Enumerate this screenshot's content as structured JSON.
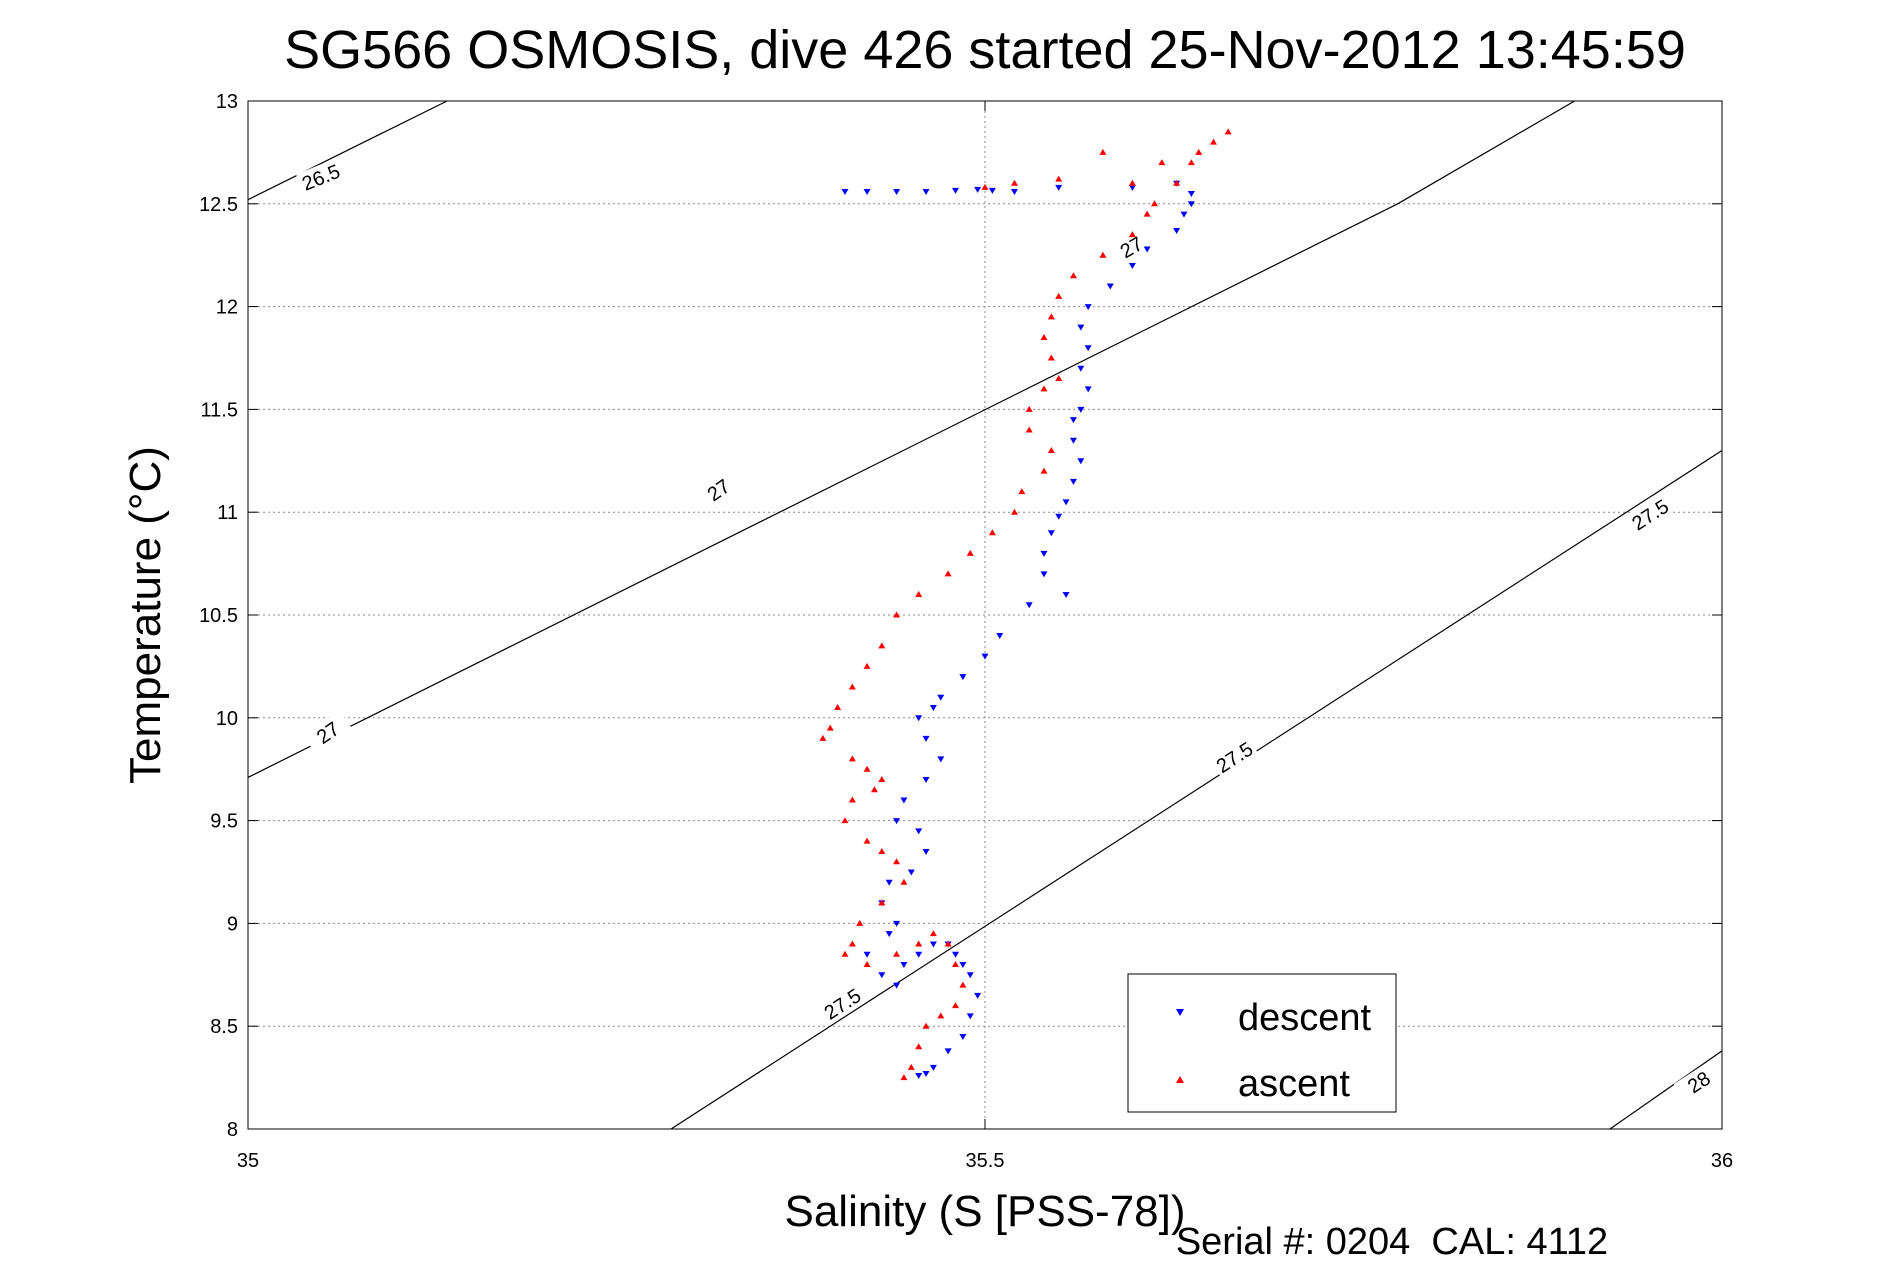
{
  "chart_data": {
    "type": "scatter",
    "title": "SG566 OSMOSIS, dive 426 started 25-Nov-2012 13:45:59",
    "xlabel": "Salinity (S [PSS-78])",
    "ylabel": "Temperature (°C)",
    "xlim": [
      35,
      36
    ],
    "ylim": [
      8,
      13
    ],
    "x_ticks": [
      "35",
      "35.5",
      "36"
    ],
    "y_ticks": [
      "8",
      "8.5",
      "9",
      "9.5",
      "10",
      "10.5",
      "11",
      "11.5",
      "12",
      "12.5",
      "13"
    ],
    "grid": true,
    "legend_position": "bottom-right",
    "footer": "Serial #: 0204  CAL: 4112",
    "density_contours": [
      {
        "label": "26.5",
        "points": [
          [
            35.0,
            12.52
          ],
          [
            35.135,
            13.0
          ]
        ]
      },
      {
        "label": "27",
        "points": [
          [
            35.0,
            9.71
          ],
          [
            35.78,
            12.5
          ],
          [
            35.28,
            10.72
          ],
          [
            35.55,
            11.67
          ],
          [
            35.157,
            10.28
          ],
          [
            35.7,
            12.2
          ]
        ]
      },
      {
        "label": "27.5",
        "points": [
          [
            35.287,
            8.0
          ],
          [
            36.0,
            11.3
          ]
        ]
      },
      {
        "label": "28",
        "points": [
          [
            35.924,
            8.0
          ],
          [
            36.0,
            8.38
          ]
        ]
      }
    ],
    "contour_label_positions": [
      {
        "label": "26.5",
        "x": 35.05,
        "y": 12.62,
        "angle": -22
      },
      {
        "label": "27",
        "x": 35.32,
        "y": 11.1,
        "angle": -35
      },
      {
        "label": "27",
        "x": 35.6,
        "y": 12.28,
        "angle": -30
      },
      {
        "label": "27",
        "x": 35.055,
        "y": 9.92,
        "angle": -35
      },
      {
        "label": "27.5",
        "x": 35.67,
        "y": 9.8,
        "angle": -33
      },
      {
        "label": "27.5",
        "x": 35.952,
        "y": 10.98,
        "angle": -33
      },
      {
        "label": "27.5",
        "x": 35.404,
        "y": 8.6,
        "angle": -33
      },
      {
        "label": "28",
        "x": 35.985,
        "y": 8.22,
        "angle": -33
      }
    ],
    "series": [
      {
        "name": "descent",
        "color": "#0000ff",
        "marker": "triangle-down",
        "x": [
          35.405,
          35.42,
          35.44,
          35.46,
          35.48,
          35.495,
          35.505,
          35.52,
          35.55,
          35.6,
          35.63,
          35.64,
          35.64,
          35.635,
          35.63,
          35.61,
          35.6,
          35.585,
          35.57,
          35.565,
          35.57,
          35.565,
          35.57,
          35.565,
          35.56,
          35.56,
          35.565,
          35.56,
          35.555,
          35.55,
          35.545,
          35.54,
          35.54,
          35.555,
          35.53,
          35.51,
          35.5,
          35.485,
          35.47,
          35.465,
          35.455,
          35.46,
          35.47,
          35.46,
          35.445,
          35.44,
          35.455,
          35.46,
          35.45,
          35.435,
          35.43,
          35.44,
          35.435,
          35.42,
          35.43,
          35.44,
          35.445,
          35.455,
          35.465,
          35.475,
          35.48,
          35.485,
          35.49,
          35.495,
          35.49,
          35.485,
          35.475,
          35.465,
          35.46,
          35.455
        ],
        "y": [
          12.56,
          12.56,
          12.56,
          12.56,
          12.565,
          12.57,
          12.565,
          12.56,
          12.58,
          12.58,
          12.6,
          12.55,
          12.5,
          12.45,
          12.37,
          12.28,
          12.2,
          12.1,
          12.0,
          11.9,
          11.8,
          11.7,
          11.6,
          11.5,
          11.45,
          11.35,
          11.25,
          11.15,
          11.05,
          10.98,
          10.9,
          10.8,
          10.7,
          10.6,
          10.55,
          10.4,
          10.3,
          10.2,
          10.1,
          10.05,
          10.0,
          9.9,
          9.8,
          9.7,
          9.6,
          9.5,
          9.45,
          9.35,
          9.25,
          9.2,
          9.1,
          9.0,
          8.95,
          8.85,
          8.75,
          8.7,
          8.8,
          8.85,
          8.9,
          8.9,
          8.85,
          8.8,
          8.75,
          8.65,
          8.55,
          8.45,
          8.38,
          8.3,
          8.27,
          8.26
        ]
      },
      {
        "name": "ascent",
        "color": "#ff0000",
        "marker": "triangle-up",
        "x": [
          35.665,
          35.655,
          35.645,
          35.64,
          35.63,
          35.615,
          35.61,
          35.6,
          35.58,
          35.56,
          35.55,
          35.545,
          35.54,
          35.545,
          35.55,
          35.54,
          35.53,
          35.53,
          35.545,
          35.54,
          35.525,
          35.52,
          35.505,
          35.49,
          35.475,
          35.455,
          35.44,
          35.43,
          35.42,
          35.41,
          35.4,
          35.395,
          35.39,
          35.41,
          35.42,
          35.43,
          35.425,
          35.41,
          35.405,
          35.42,
          35.43,
          35.44,
          35.445,
          35.43,
          35.415,
          35.41,
          35.405,
          35.42,
          35.44,
          35.455,
          35.465,
          35.475,
          35.48,
          35.485,
          35.48,
          35.47,
          35.46,
          35.455,
          35.45,
          35.445,
          35.58,
          35.62,
          35.6,
          35.55,
          35.52,
          35.5
        ],
        "y": [
          12.85,
          12.8,
          12.75,
          12.7,
          12.6,
          12.5,
          12.45,
          12.35,
          12.25,
          12.15,
          12.05,
          11.95,
          11.85,
          11.75,
          11.65,
          11.6,
          11.5,
          11.4,
          11.3,
          11.2,
          11.1,
          11.0,
          10.9,
          10.8,
          10.7,
          10.6,
          10.5,
          10.35,
          10.25,
          10.15,
          10.05,
          9.95,
          9.9,
          9.8,
          9.75,
          9.7,
          9.65,
          9.6,
          9.5,
          9.4,
          9.35,
          9.3,
          9.2,
          9.1,
          9.0,
          8.9,
          8.85,
          8.8,
          8.85,
          8.9,
          8.95,
          8.9,
          8.8,
          8.7,
          8.6,
          8.55,
          8.5,
          8.4,
          8.3,
          8.25,
          12.75,
          12.7,
          12.6,
          12.62,
          12.6,
          12.58
        ]
      }
    ]
  }
}
